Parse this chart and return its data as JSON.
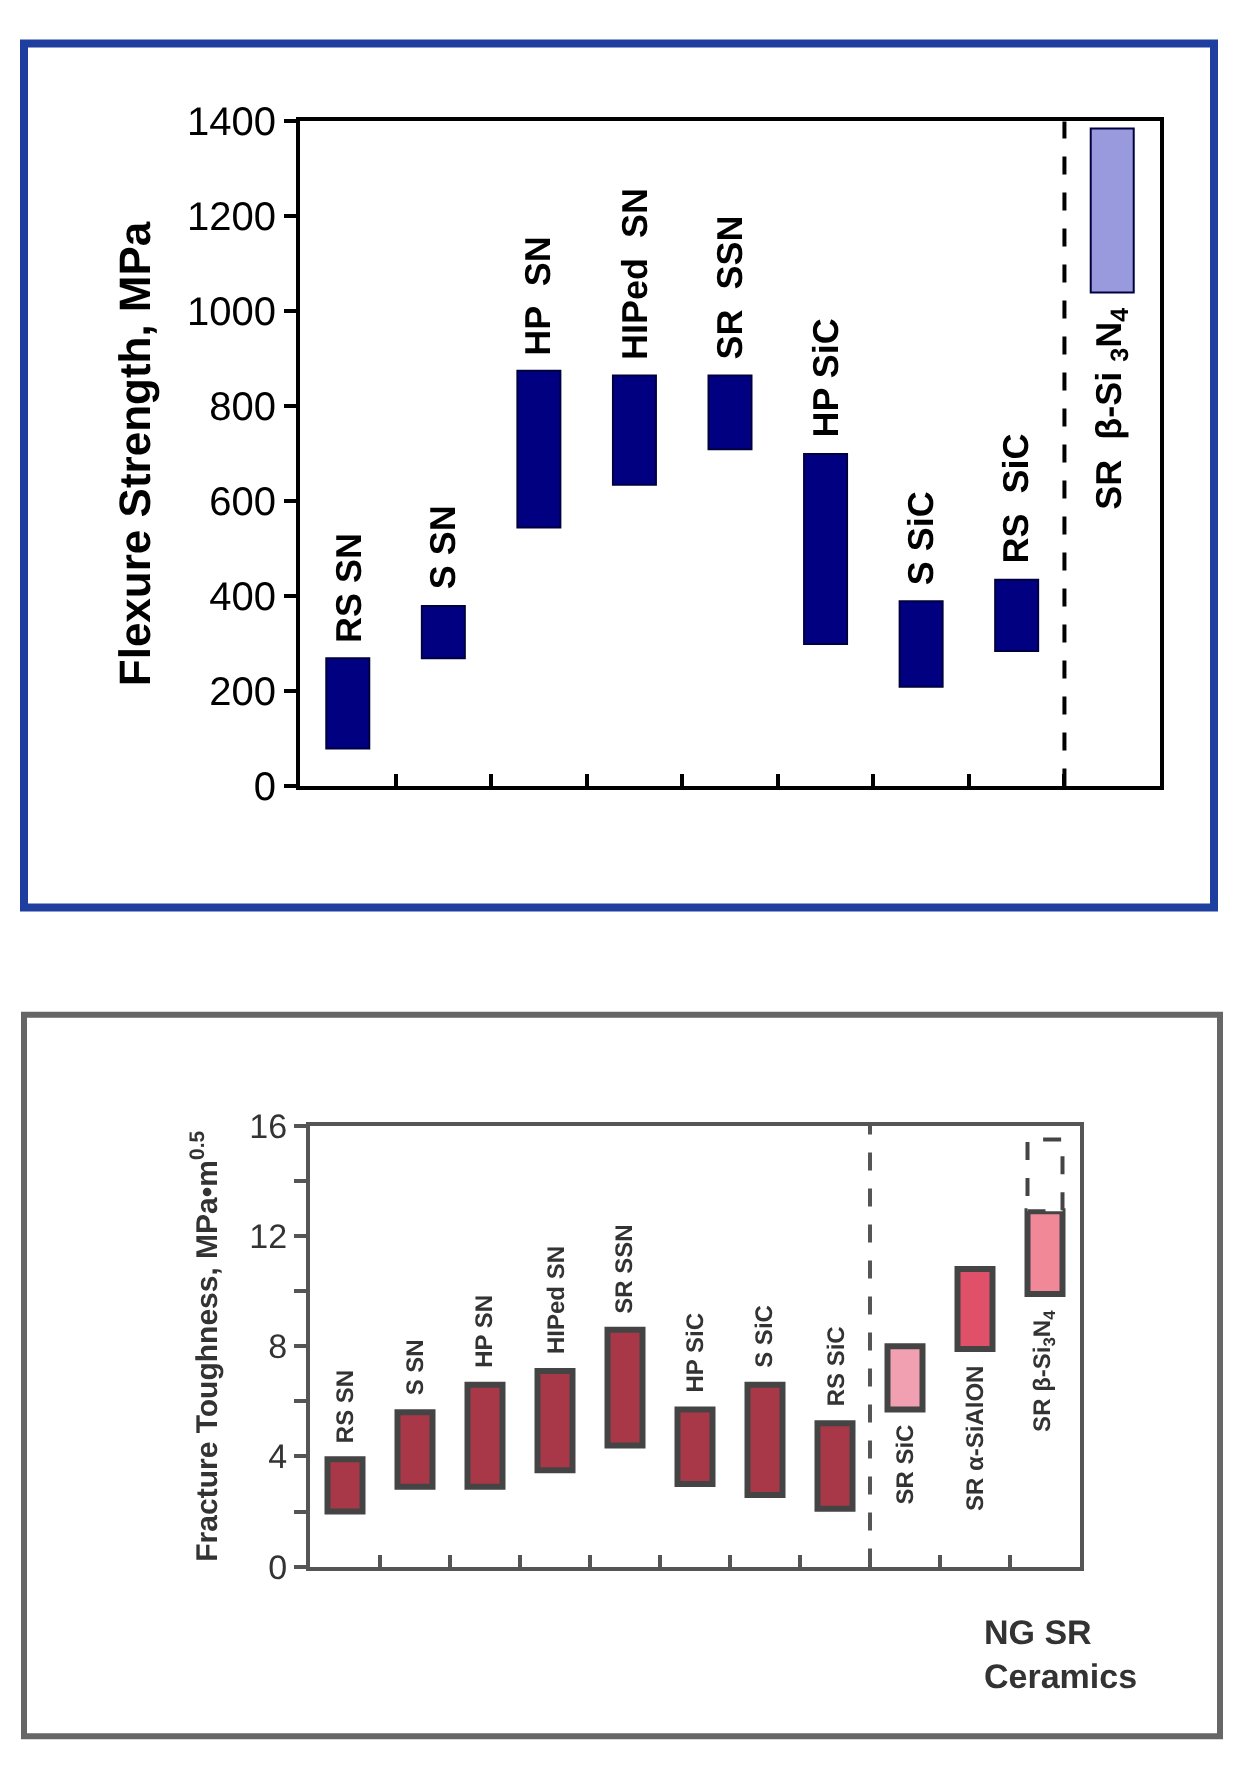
{
  "chart_data": [
    {
      "type": "bar",
      "ylabel": "Flexure Strength, MPa",
      "categories": [
        "RS SN",
        "S SN",
        "HP  SN",
        "HIPed  SN",
        "SR  SSN",
        "HP SiC",
        "S SiC",
        "RS  SiC",
        "SR  β-Si $_{3}$N$_{4}$"
      ],
      "series": [
        {
          "color": "#000080",
          "values": [
            190,
            110,
            330,
            230,
            155,
            400,
            180,
            150,
            null
          ],
          "base": [
            80,
            270,
            545,
            635,
            710,
            300,
            210,
            285,
            null
          ]
        },
        {
          "color": "#9999dd",
          "values": [
            null,
            null,
            null,
            null,
            null,
            null,
            null,
            null,
            345
          ],
          "base": [
            null,
            null,
            null,
            null,
            null,
            null,
            null,
            null,
            1040
          ]
        }
      ],
      "ylim": [
        0,
        1400
      ],
      "yticks": [
        0,
        200,
        400,
        600,
        800,
        1000,
        1200,
        1400
      ],
      "tick_labels": "y"
    },
    {
      "type": "bar",
      "ylabel": "Fracture Toughness, MPa•m$^{0.5}$",
      "categories": [
        "RS SN",
        "S SN",
        "HP SN",
        "HIPed SN",
        "SR SSN",
        "HP SiC",
        "S SiC",
        "RS SiC",
        "SR SiC",
        "SR α-SiAlON",
        "SR β-Si$_{3}$N$_{4}$"
      ],
      "series": [
        {
          "color": "#a83848",
          "values": [
            1.9,
            2.7,
            3.7,
            3.6,
            4.2,
            2.7,
            4.0,
            3.1,
            null,
            null,
            null
          ],
          "base": [
            2.0,
            2.9,
            2.9,
            3.5,
            4.4,
            3.0,
            2.6,
            2.1,
            null,
            null,
            null
          ]
        },
        {
          "colors": [
            null,
            null,
            null,
            null,
            null,
            null,
            null,
            null,
            "#f0a0b0",
            "#e05068",
            "#f08898"
          ],
          "values": [
            null,
            null,
            null,
            null,
            null,
            null,
            null,
            null,
            2.3,
            2.9,
            3.0
          ],
          "base": [
            null,
            null,
            null,
            null,
            null,
            null,
            null,
            null,
            5.7,
            7.9,
            9.9
          ]
        },
        {
          "color": "#ffffff",
          "values": [
            null,
            null,
            null,
            null,
            null,
            null,
            null,
            null,
            null,
            null,
            2.6
          ],
          "base": [
            null,
            null,
            null,
            null,
            null,
            null,
            null,
            null,
            null,
            null,
            12.9
          ],
          "line_style": "dashed"
        }
      ],
      "ylim": [
        0,
        16
      ],
      "yticks": [
        0,
        {
          "value": 2,
          "label": null
        },
        4,
        {
          "value": 6,
          "label": null
        },
        8,
        {
          "value": 10,
          "label": null
        },
        12,
        {
          "value": 14,
          "label": null
        },
        16
      ],
      "annotations": [
        "NG SR Ceramics"
      ],
      "tick_labels": "y"
    }
  ]
}
